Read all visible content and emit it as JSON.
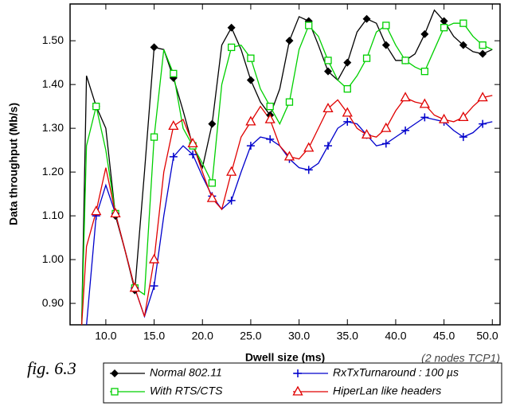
{
  "chart_data": {
    "type": "line",
    "xlabel": "Dwell size (ms)",
    "ylabel": "Data throughput (Mb/s)",
    "annotation": "(2 nodes TCP1)",
    "caption": "fig. 6.3",
    "x": [
      7.5,
      8,
      9,
      10,
      11,
      12,
      13,
      14,
      15,
      16,
      17,
      18,
      19,
      20,
      21,
      22,
      23,
      24,
      25,
      26,
      27,
      28,
      29,
      30,
      31,
      32,
      33,
      34,
      35,
      36,
      37,
      38,
      39,
      40,
      41,
      42,
      43,
      44,
      45,
      46,
      47,
      48,
      49,
      50
    ],
    "series": [
      {
        "name": "Normal 802.11",
        "color": "#000000",
        "marker": "diamond",
        "values": [
          0.85,
          1.42,
          1.35,
          1.3,
          1.1,
          1.02,
          0.93,
          1.2,
          1.485,
          1.48,
          1.415,
          1.34,
          1.26,
          1.21,
          1.31,
          1.49,
          1.53,
          1.48,
          1.41,
          1.36,
          1.33,
          1.39,
          1.5,
          1.555,
          1.545,
          1.49,
          1.43,
          1.41,
          1.45,
          1.52,
          1.55,
          1.54,
          1.49,
          1.455,
          1.455,
          1.47,
          1.515,
          1.57,
          1.545,
          1.51,
          1.49,
          1.475,
          1.47,
          1.48
        ]
      },
      {
        "name": "With RTS/CTS",
        "color": "#00d000",
        "marker": "square",
        "values": [
          0.85,
          1.26,
          1.35,
          1.25,
          1.105,
          1.02,
          0.935,
          0.92,
          1.28,
          1.48,
          1.425,
          1.3,
          1.26,
          1.22,
          1.175,
          1.4,
          1.485,
          1.49,
          1.46,
          1.39,
          1.35,
          1.31,
          1.36,
          1.48,
          1.535,
          1.51,
          1.455,
          1.41,
          1.39,
          1.42,
          1.46,
          1.52,
          1.535,
          1.49,
          1.455,
          1.44,
          1.43,
          1.48,
          1.53,
          1.54,
          1.54,
          1.51,
          1.49,
          1.48
        ]
      },
      {
        "name": "RxTxTurnaround : 100 µs",
        "color": "#0000cc",
        "marker": "plus",
        "values": [
          0.85,
          0.85,
          1.1,
          1.17,
          1.105,
          1.02,
          0.935,
          0.87,
          0.94,
          1.1,
          1.235,
          1.26,
          1.24,
          1.19,
          1.145,
          1.115,
          1.135,
          1.2,
          1.26,
          1.28,
          1.275,
          1.26,
          1.23,
          1.21,
          1.205,
          1.22,
          1.26,
          1.3,
          1.315,
          1.31,
          1.285,
          1.26,
          1.265,
          1.28,
          1.295,
          1.31,
          1.325,
          1.32,
          1.315,
          1.295,
          1.28,
          1.29,
          1.31,
          1.315
        ]
      },
      {
        "name": "HiperLan like headers",
        "color": "#e00000",
        "marker": "triangle",
        "values": [
          0.85,
          1.03,
          1.11,
          1.21,
          1.105,
          1.02,
          0.935,
          0.87,
          1.0,
          1.2,
          1.305,
          1.32,
          1.265,
          1.2,
          1.14,
          1.115,
          1.2,
          1.28,
          1.315,
          1.35,
          1.32,
          1.26,
          1.235,
          1.23,
          1.255,
          1.3,
          1.345,
          1.365,
          1.335,
          1.3,
          1.285,
          1.28,
          1.3,
          1.34,
          1.37,
          1.36,
          1.355,
          1.33,
          1.32,
          1.315,
          1.325,
          1.35,
          1.37,
          1.375
        ]
      }
    ],
    "xlim": [
      6.3,
      50.8
    ],
    "ylim": [
      0.851,
      1.584
    ],
    "xticks": [
      {
        "value": 10,
        "label": "10.0"
      },
      {
        "value": 15,
        "label": "15.0"
      },
      {
        "value": 20,
        "label": "20.0"
      },
      {
        "value": 25,
        "label": "25.0"
      },
      {
        "value": 30,
        "label": "30.0"
      },
      {
        "value": 35,
        "label": "35.0"
      },
      {
        "value": 40,
        "label": "40.0"
      },
      {
        "value": 45,
        "label": "45.0"
      },
      {
        "value": 50,
        "label": "50.0"
      }
    ],
    "yticks": [
      {
        "value": 0.9,
        "label": "0.90"
      },
      {
        "value": 1.0,
        "label": "1.00"
      },
      {
        "value": 1.1,
        "label": "1.10"
      },
      {
        "value": 1.2,
        "label": "1.20"
      },
      {
        "value": 1.3,
        "label": "1.30"
      },
      {
        "value": 1.4,
        "label": "1.40"
      },
      {
        "value": 1.5,
        "label": "1.50"
      }
    ]
  }
}
